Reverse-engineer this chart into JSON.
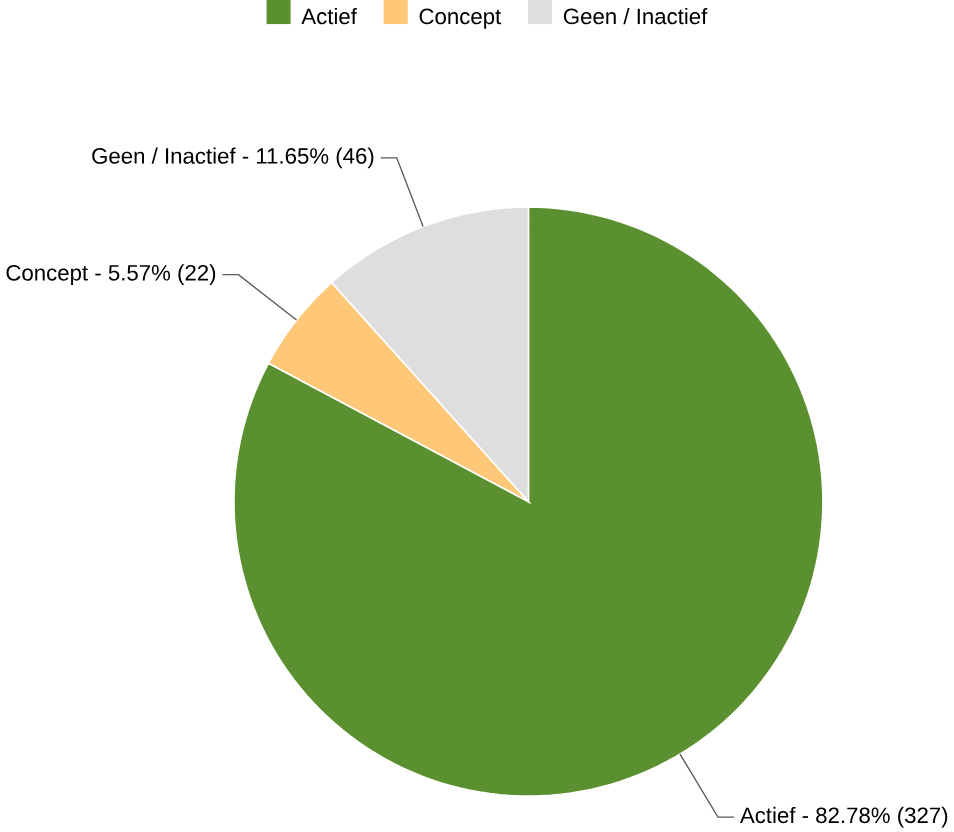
{
  "chart_data": {
    "type": "pie",
    "categories": [
      "Actief",
      "Concept",
      "Geen / Inactief"
    ],
    "values": [
      327,
      22,
      46
    ],
    "colors": [
      "#5b9030",
      "#ffc878",
      "#dedede"
    ],
    "value_labels": [
      "Actief - 82.78% (327)",
      "Concept - 5.57% (22)",
      "Geen / Inactief - 11.65% (46)"
    ],
    "legend": "top"
  }
}
